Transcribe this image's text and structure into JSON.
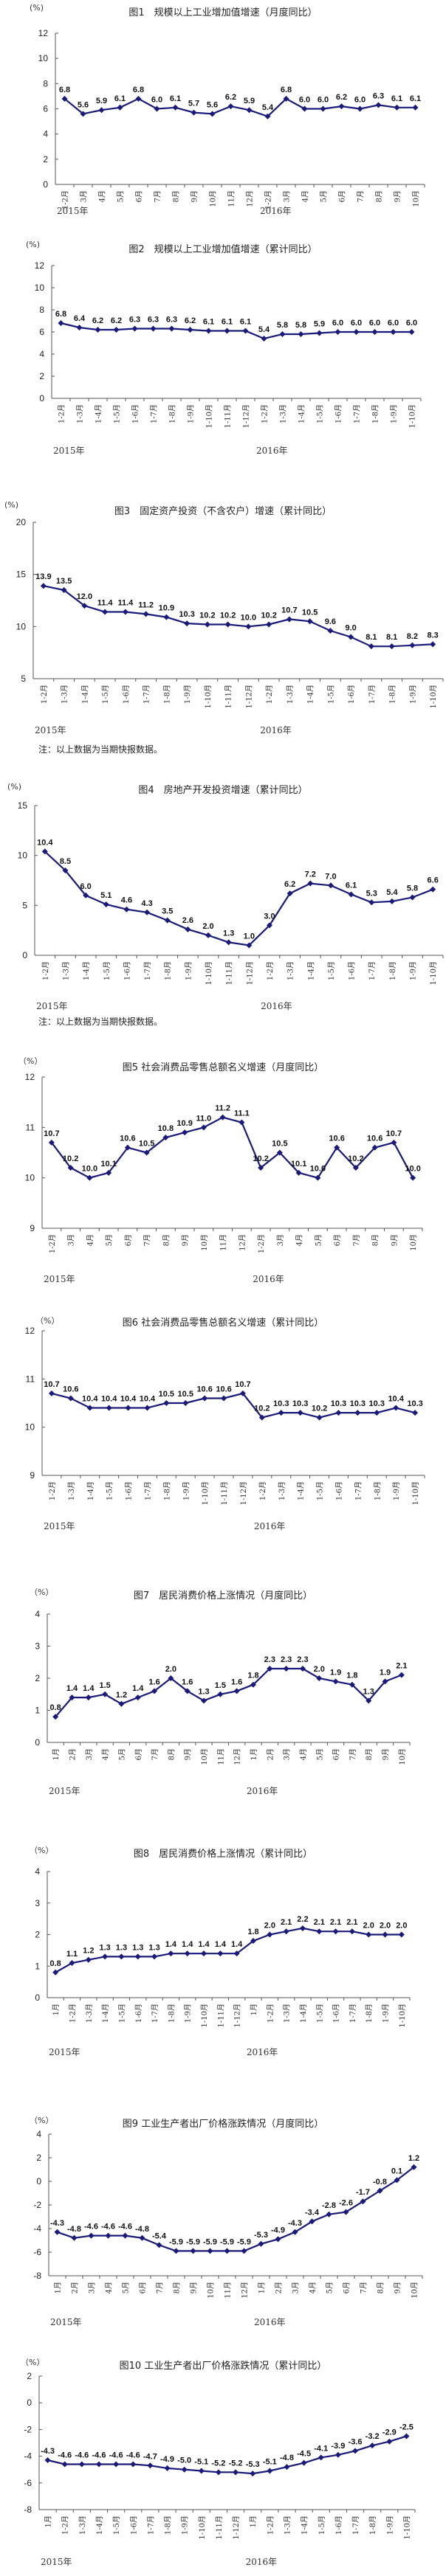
{
  "page": {
    "unit": "(%)",
    "note": "注：以上数据为当期快报数据。",
    "line_color": "#1a1a7a"
  },
  "chart_data": [
    {
      "id": "fig1",
      "type": "line",
      "title": "图1　规模以上工业增加值增速（月度同比）",
      "ylabel": "(%)",
      "ylim": [
        0,
        12
      ],
      "yticks": [
        0,
        2,
        4,
        6,
        8,
        10,
        12
      ],
      "categories": [
        "1-2月",
        "3月",
        "4月",
        "5月",
        "6月",
        "7月",
        "8月",
        "9月",
        "10月",
        "11月",
        "12月",
        "1-2月",
        "3月",
        "4月",
        "5月",
        "6月",
        "7月",
        "8月",
        "9月",
        "10月"
      ],
      "years": [
        {
          "label": "2015年",
          "start_index": 0
        },
        {
          "label": "2016年",
          "start_index": 11
        }
      ],
      "values": [
        6.8,
        5.6,
        5.9,
        6.1,
        6.8,
        6.0,
        6.1,
        5.7,
        5.6,
        6.2,
        5.9,
        5.4,
        6.8,
        6.0,
        6.0,
        6.2,
        6.0,
        6.3,
        6.1,
        6.1
      ],
      "note": null
    },
    {
      "id": "fig2",
      "type": "line",
      "title": "图2　规模以上工业增加值增速（累计同比）",
      "ylabel": "(%)",
      "ylim": [
        0,
        12
      ],
      "yticks": [
        0,
        2,
        4,
        6,
        8,
        10,
        12
      ],
      "categories": [
        "1-2月",
        "1-3月",
        "1-4月",
        "1-5月",
        "1-6月",
        "1-7月",
        "1-8月",
        "1-9月",
        "1-10月",
        "1-11月",
        "1-12月",
        "1-2月",
        "1-3月",
        "1-4月",
        "1-5月",
        "1-6月",
        "1-7月",
        "1-8月",
        "1-9月",
        "1-10月"
      ],
      "years": [
        {
          "label": "2015年",
          "start_index": 0
        },
        {
          "label": "2016年",
          "start_index": 11
        }
      ],
      "values": [
        6.8,
        6.4,
        6.2,
        6.2,
        6.3,
        6.3,
        6.3,
        6.2,
        6.1,
        6.1,
        6.1,
        5.4,
        5.8,
        5.8,
        5.9,
        6.0,
        6.0,
        6.0,
        6.0,
        6.0
      ],
      "note": null
    },
    {
      "id": "fig3",
      "type": "line",
      "title": "图3　固定资产投资（不含农户）增速（累计同比）",
      "ylabel": "(%)",
      "ylim": [
        5,
        20
      ],
      "yticks": [
        5,
        10,
        15,
        20
      ],
      "categories": [
        "1-2月",
        "1-3月",
        "1-4月",
        "1-5月",
        "1-6月",
        "1-7月",
        "1-8月",
        "1-9月",
        "1-10月",
        "1-11月",
        "1-12月",
        "1-2月",
        "1-3月",
        "1-4月",
        "1-5月",
        "1-6月",
        "1-7月",
        "1-8月",
        "1-9月",
        "1-10月"
      ],
      "years": [
        {
          "label": "2015年",
          "start_index": 0
        },
        {
          "label": "2016年",
          "start_index": 11
        }
      ],
      "values": [
        13.9,
        13.5,
        12.0,
        11.4,
        11.4,
        11.2,
        10.9,
        10.3,
        10.2,
        10.2,
        10.0,
        10.2,
        10.7,
        10.5,
        9.6,
        9.0,
        8.1,
        8.1,
        8.2,
        8.3
      ],
      "note": "注：以上数据为当期快报数据。"
    },
    {
      "id": "fig4",
      "type": "line",
      "title": "图4　房地产开发投资增速（累计同比）",
      "ylabel": "(%)",
      "ylim": [
        0,
        15
      ],
      "yticks": [
        0,
        5,
        10,
        15
      ],
      "categories": [
        "1-2月",
        "1-3月",
        "1-4月",
        "1-5月",
        "1-6月",
        "1-7月",
        "1-8月",
        "1-9月",
        "1-10月",
        "1-11月",
        "1-12月",
        "1-2月",
        "1-3月",
        "1-4月",
        "1-5月",
        "1-6月",
        "1-7月",
        "1-8月",
        "1-9月",
        "1-10月"
      ],
      "years": [
        {
          "label": "2015年",
          "start_index": 0
        },
        {
          "label": "2016年",
          "start_index": 11
        }
      ],
      "values": [
        10.4,
        8.5,
        6.0,
        5.1,
        4.6,
        4.3,
        3.5,
        2.6,
        2.0,
        1.3,
        1.0,
        3.0,
        6.2,
        7.2,
        7.0,
        6.1,
        5.3,
        5.4,
        5.8,
        6.6
      ],
      "note": "注：以上数据为当期快报数据。"
    },
    {
      "id": "fig5",
      "type": "line",
      "title": "图5 社会消费品零售总额名义增速（月度同比）",
      "ylabel": "（%）",
      "ylim": [
        9,
        12
      ],
      "yticks": [
        9,
        10,
        11,
        12
      ],
      "categories": [
        "1-2月",
        "3月",
        "4月",
        "5月",
        "6月",
        "7月",
        "8月",
        "9月",
        "10月",
        "11月",
        "12月",
        "1-2月",
        "3月",
        "4月",
        "5月",
        "6月",
        "7月",
        "8月",
        "9月",
        "10月"
      ],
      "years": [
        {
          "label": "2015年",
          "start_index": 0
        },
        {
          "label": "2016年",
          "start_index": 11
        }
      ],
      "values": [
        10.7,
        10.2,
        10.0,
        10.1,
        10.6,
        10.5,
        10.8,
        10.9,
        11.0,
        11.2,
        11.1,
        10.2,
        10.5,
        10.1,
        10.0,
        10.6,
        10.2,
        10.6,
        10.7,
        10.0
      ],
      "note": null
    },
    {
      "id": "fig6",
      "type": "line",
      "title": "图6 社会消费品零售总额名义增速（累计同比）",
      "ylabel": "（%）",
      "ylim": [
        9,
        12
      ],
      "yticks": [
        9,
        10,
        11,
        12
      ],
      "categories": [
        "1-2月",
        "1-3月",
        "1-4月",
        "1-5月",
        "1-6月",
        "1-7月",
        "1-8月",
        "1-9月",
        "1-10月",
        "1-11月",
        "1-12月",
        "1-2月",
        "1-3月",
        "1-4月",
        "1-5月",
        "1-6月",
        "1-7月",
        "1-8月",
        "1-9月",
        "1-10月"
      ],
      "years": [
        {
          "label": "2015年",
          "start_index": 0
        },
        {
          "label": "2016年",
          "start_index": 11
        }
      ],
      "values": [
        10.7,
        10.6,
        10.4,
        10.4,
        10.4,
        10.4,
        10.5,
        10.5,
        10.6,
        10.6,
        10.7,
        10.2,
        10.3,
        10.3,
        10.2,
        10.3,
        10.3,
        10.3,
        10.4,
        10.3
      ],
      "note": null
    },
    {
      "id": "fig7",
      "type": "line",
      "title": "图7　居民消费价格上涨情况（月度同比）",
      "ylabel": "（%）",
      "ylim": [
        0,
        4
      ],
      "yticks": [
        0,
        1,
        2,
        3,
        4
      ],
      "categories": [
        "1月",
        "2月",
        "3月",
        "4月",
        "5月",
        "6月",
        "7月",
        "8月",
        "9月",
        "10月",
        "11月",
        "12月",
        "1月",
        "2月",
        "3月",
        "4月",
        "5月",
        "6月",
        "7月",
        "8月",
        "9月",
        "10月"
      ],
      "years": [
        {
          "label": "2015年",
          "start_index": 0
        },
        {
          "label": "2016年",
          "start_index": 12
        }
      ],
      "values": [
        0.8,
        1.4,
        1.4,
        1.5,
        1.2,
        1.4,
        1.6,
        2.0,
        1.6,
        1.3,
        1.5,
        1.6,
        1.8,
        2.3,
        2.3,
        2.3,
        2.0,
        1.9,
        1.8,
        1.3,
        1.9,
        2.1
      ],
      "note": null
    },
    {
      "id": "fig8",
      "type": "line",
      "title": "图8　居民消费价格上涨情况（累计同比）",
      "ylabel": "（%）",
      "ylim": [
        0,
        4
      ],
      "yticks": [
        0,
        1,
        2,
        3,
        4
      ],
      "categories": [
        "1月",
        "1-2月",
        "1-3月",
        "1-4月",
        "1-5月",
        "1-6月",
        "1-7月",
        "1-8月",
        "1-9月",
        "1-10月",
        "1-11月",
        "1-12月",
        "1月",
        "1-2月",
        "1-3月",
        "1-4月",
        "1-5月",
        "1-6月",
        "1-7月",
        "1-8月",
        "1-9月",
        "1-10月"
      ],
      "years": [
        {
          "label": "2015年",
          "start_index": 0
        },
        {
          "label": "2016年",
          "start_index": 12
        }
      ],
      "values": [
        0.8,
        1.1,
        1.2,
        1.3,
        1.3,
        1.3,
        1.3,
        1.4,
        1.4,
        1.4,
        1.4,
        1.4,
        1.8,
        2.0,
        2.1,
        2.2,
        2.1,
        2.1,
        2.1,
        2.0,
        2.0,
        2.0
      ],
      "note": null
    },
    {
      "id": "fig9",
      "type": "line",
      "title": "图9 工业生产者出厂价格涨跌情况（月度同比）",
      "ylabel": "（%）",
      "ylim": [
        -8,
        4
      ],
      "yticks": [
        -8,
        -6,
        -4,
        -2,
        0,
        2,
        4
      ],
      "categories": [
        "1月",
        "2月",
        "3月",
        "4月",
        "5月",
        "6月",
        "7月",
        "8月",
        "9月",
        "10月",
        "11月",
        "12月",
        "1月",
        "2月",
        "3月",
        "4月",
        "5月",
        "6月",
        "7月",
        "8月",
        "9月",
        "10月"
      ],
      "years": [
        {
          "label": "2015年",
          "start_index": 0
        },
        {
          "label": "2016年",
          "start_index": 12
        }
      ],
      "values": [
        -4.3,
        -4.8,
        -4.6,
        -4.6,
        -4.6,
        -4.8,
        -5.4,
        -5.9,
        -5.9,
        -5.9,
        -5.9,
        -5.9,
        -5.3,
        -4.9,
        -4.3,
        -3.4,
        -2.8,
        -2.6,
        -1.7,
        -0.8,
        0.1,
        1.2
      ],
      "note": null
    },
    {
      "id": "fig10",
      "type": "line",
      "title": "图10 工业生产者出厂价格涨跌情况（累计同比）",
      "ylabel": "（%）",
      "ylim": [
        -8,
        2
      ],
      "yticks": [
        -8,
        -6,
        -4,
        -2,
        0,
        2
      ],
      "categories": [
        "1月",
        "1-2月",
        "1-3月",
        "1-4月",
        "1-5月",
        "1-6月",
        "1-7月",
        "1-8月",
        "1-9月",
        "1-10月",
        "1-11月",
        "1-12月",
        "1月",
        "1-2月",
        "1-3月",
        "1-4月",
        "1-5月",
        "1-6月",
        "1-7月",
        "1-8月",
        "1-9月",
        "1-10月"
      ],
      "years": [
        {
          "label": "2015年",
          "start_index": 0
        },
        {
          "label": "2016年",
          "start_index": 12
        }
      ],
      "values": [
        -4.3,
        -4.6,
        -4.6,
        -4.6,
        -4.6,
        -4.6,
        -4.7,
        -4.9,
        -5.0,
        -5.1,
        -5.2,
        -5.2,
        -5.3,
        -5.1,
        -4.8,
        -4.5,
        -4.1,
        -3.9,
        -3.6,
        -3.2,
        -2.9,
        -2.5
      ],
      "note": null
    }
  ]
}
